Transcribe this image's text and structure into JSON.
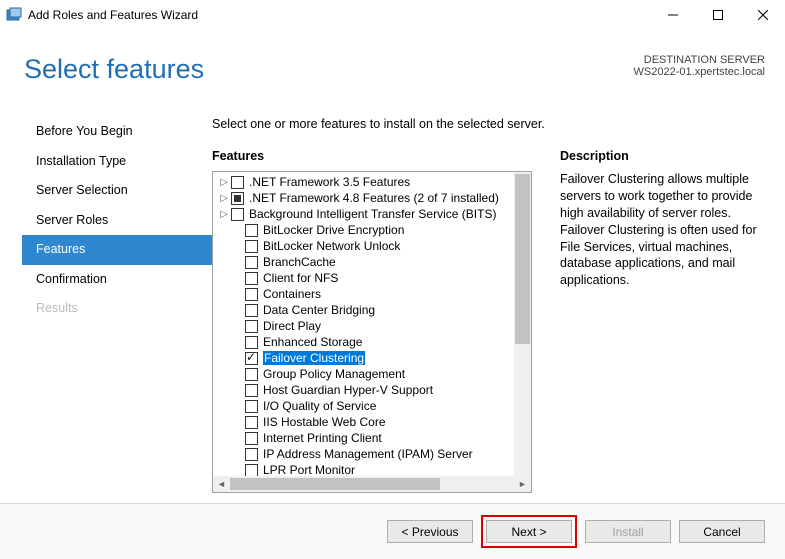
{
  "window": {
    "title": "Add Roles and Features Wizard"
  },
  "header": {
    "page_title": "Select features",
    "destination_label": "DESTINATION SERVER",
    "destination_value": "WS2022-01.xpertstec.local"
  },
  "nav": {
    "items": [
      {
        "label": "Before You Begin",
        "state": "normal"
      },
      {
        "label": "Installation Type",
        "state": "normal"
      },
      {
        "label": "Server Selection",
        "state": "normal"
      },
      {
        "label": "Server Roles",
        "state": "normal"
      },
      {
        "label": "Features",
        "state": "selected"
      },
      {
        "label": "Confirmation",
        "state": "normal"
      },
      {
        "label": "Results",
        "state": "disabled"
      }
    ]
  },
  "content": {
    "instruction": "Select one or more features to install on the selected server.",
    "features_label": "Features",
    "description_label": "Description",
    "description_text": "Failover Clustering allows multiple servers to work together to provide high availability of server roles. Failover Clustering is often used for File Services, virtual machines, database applications, and mail applications."
  },
  "features": [
    {
      "label": ".NET Framework 3.5 Features",
      "expandable": true,
      "checked": "none",
      "indent": 0
    },
    {
      "label": ".NET Framework 4.8 Features (2 of 7 installed)",
      "expandable": true,
      "checked": "partial",
      "indent": 0
    },
    {
      "label": "Background Intelligent Transfer Service (BITS)",
      "expandable": true,
      "checked": "none",
      "indent": 0
    },
    {
      "label": "BitLocker Drive Encryption",
      "expandable": false,
      "checked": "none",
      "indent": 0
    },
    {
      "label": "BitLocker Network Unlock",
      "expandable": false,
      "checked": "none",
      "indent": 0
    },
    {
      "label": "BranchCache",
      "expandable": false,
      "checked": "none",
      "indent": 0
    },
    {
      "label": "Client for NFS",
      "expandable": false,
      "checked": "none",
      "indent": 0
    },
    {
      "label": "Containers",
      "expandable": false,
      "checked": "none",
      "indent": 0
    },
    {
      "label": "Data Center Bridging",
      "expandable": false,
      "checked": "none",
      "indent": 0
    },
    {
      "label": "Direct Play",
      "expandable": false,
      "checked": "none",
      "indent": 0
    },
    {
      "label": "Enhanced Storage",
      "expandable": false,
      "checked": "none",
      "indent": 0
    },
    {
      "label": "Failover Clustering",
      "expandable": false,
      "checked": "checked",
      "indent": 0,
      "highlighted": true
    },
    {
      "label": "Group Policy Management",
      "expandable": false,
      "checked": "none",
      "indent": 0
    },
    {
      "label": "Host Guardian Hyper-V Support",
      "expandable": false,
      "checked": "none",
      "indent": 0
    },
    {
      "label": "I/O Quality of Service",
      "expandable": false,
      "checked": "none",
      "indent": 0
    },
    {
      "label": "IIS Hostable Web Core",
      "expandable": false,
      "checked": "none",
      "indent": 0
    },
    {
      "label": "Internet Printing Client",
      "expandable": false,
      "checked": "none",
      "indent": 0
    },
    {
      "label": "IP Address Management (IPAM) Server",
      "expandable": false,
      "checked": "none",
      "indent": 0
    },
    {
      "label": "LPR Port Monitor",
      "expandable": false,
      "checked": "none",
      "indent": 0
    }
  ],
  "footer": {
    "previous": "< Previous",
    "next": "Next >",
    "install": "Install",
    "cancel": "Cancel"
  },
  "colors": {
    "accent": "#1e6fb8",
    "nav_selected_bg": "#2f87d0",
    "highlight_bg": "#0078d7",
    "red_outline": "#d90000"
  }
}
